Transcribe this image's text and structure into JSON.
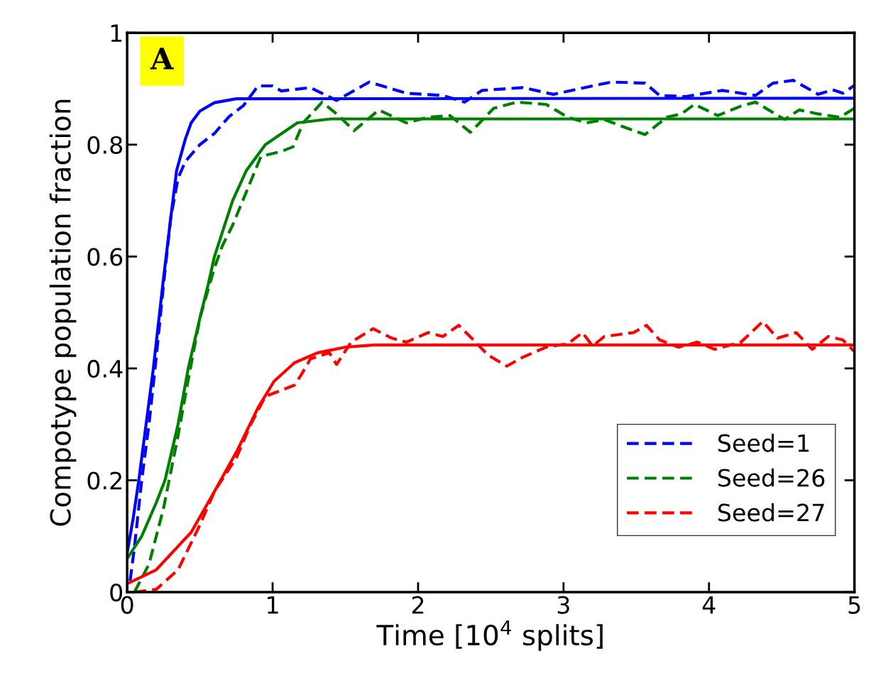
{
  "chart_data": {
    "type": "line",
    "xlabel": "Time [10$^{4}$ splits]",
    "ylabel": "Compotype population fraction",
    "annotations": [
      "A"
    ],
    "xlim": [
      0,
      5
    ],
    "ylim": [
      0,
      1
    ],
    "xticks": [
      0,
      1,
      2,
      3,
      4,
      5
    ],
    "yticks": [
      0,
      0.2,
      0.4,
      0.6,
      0.8,
      1
    ],
    "grid": false,
    "legend": "bottom right",
    "series": [
      {
        "name": "Seed=1",
        "color": "#0000ff",
        "line_style": "dashed",
        "x": [
          0.02,
          0.05,
          0.1,
          0.15,
          0.2,
          0.25,
          0.3,
          0.35,
          0.4,
          0.5,
          0.6,
          0.7,
          0.8,
          0.9,
          1.0,
          1.06,
          1.26,
          1.44,
          1.665,
          1.92,
          2.17,
          2.32,
          2.44,
          2.72,
          2.93,
          3.2,
          3.33,
          3.56,
          3.66,
          3.84,
          4.09,
          4.32,
          4.44,
          4.58,
          4.75,
          4.85,
          4.92,
          5.0
        ],
        "values": [
          0.02,
          0.08,
          0.2,
          0.3,
          0.42,
          0.55,
          0.67,
          0.74,
          0.77,
          0.8,
          0.82,
          0.85,
          0.87,
          0.905,
          0.905,
          0.896,
          0.902,
          0.879,
          0.912,
          0.892,
          0.888,
          0.876,
          0.897,
          0.902,
          0.89,
          0.905,
          0.912,
          0.91,
          0.888,
          0.886,
          0.897,
          0.888,
          0.91,
          0.915,
          0.89,
          0.898,
          0.892,
          0.906
        ]
      },
      {
        "name": "Seed=26",
        "color": "#008000",
        "line_style": "dashed",
        "x": [
          0.05,
          0.15,
          0.25,
          0.35,
          0.42,
          0.5,
          0.6,
          0.656,
          0.725,
          0.92,
          1.06,
          1.14,
          1.21,
          1.34,
          1.44,
          1.56,
          1.73,
          1.92,
          2.07,
          2.22,
          2.36,
          2.52,
          2.68,
          2.88,
          3.03,
          3.16,
          3.28,
          3.41,
          3.56,
          3.71,
          3.81,
          3.9,
          4.06,
          4.22,
          4.32,
          4.52,
          4.62,
          4.75,
          4.9,
          5.0
        ],
        "values": [
          0.0,
          0.05,
          0.15,
          0.28,
          0.38,
          0.49,
          0.58,
          0.62,
          0.656,
          0.779,
          0.788,
          0.796,
          0.839,
          0.876,
          0.855,
          0.825,
          0.862,
          0.839,
          0.849,
          0.852,
          0.822,
          0.865,
          0.876,
          0.872,
          0.849,
          0.839,
          0.845,
          0.832,
          0.818,
          0.849,
          0.855,
          0.872,
          0.852,
          0.869,
          0.876,
          0.845,
          0.862,
          0.855,
          0.849,
          0.865
        ]
      },
      {
        "name": "Seed=27",
        "color": "#ff0000",
        "line_style": "dashed",
        "x": [
          0.05,
          0.2,
          0.35,
          0.5,
          0.6,
          0.75,
          0.85,
          0.95,
          1.05,
          1.15,
          1.2,
          1.26,
          1.39,
          1.44,
          1.54,
          1.69,
          1.82,
          1.92,
          2.07,
          2.17,
          2.28,
          2.38,
          2.48,
          2.61,
          2.72,
          2.88,
          3.03,
          3.13,
          3.2,
          3.28,
          3.48,
          3.57,
          3.66,
          3.79,
          3.92,
          4.04,
          4.22,
          4.37,
          4.47,
          4.6,
          4.71,
          4.82,
          4.92,
          5.0
        ],
        "values": [
          0.0,
          0.005,
          0.04,
          0.12,
          0.18,
          0.24,
          0.3,
          0.35,
          0.36,
          0.37,
          0.39,
          0.417,
          0.428,
          0.407,
          0.447,
          0.471,
          0.454,
          0.447,
          0.464,
          0.457,
          0.477,
          0.451,
          0.424,
          0.404,
          0.42,
          0.438,
          0.444,
          0.464,
          0.44,
          0.457,
          0.464,
          0.477,
          0.451,
          0.438,
          0.447,
          0.434,
          0.447,
          0.484,
          0.454,
          0.464,
          0.434,
          0.457,
          0.451,
          0.43
        ]
      },
      {
        "color": "#0000ff",
        "line_style": "solid",
        "x": [
          0,
          0.04,
          0.08,
          0.13,
          0.18,
          0.245,
          0.3,
          0.34,
          0.4,
          0.44,
          0.5,
          0.6,
          0.75,
          5
        ],
        "values": [
          0.07,
          0.13,
          0.2,
          0.3,
          0.4,
          0.55,
          0.67,
          0.754,
          0.81,
          0.839,
          0.86,
          0.875,
          0.882,
          0.883
        ]
      },
      {
        "color": "#008000",
        "line_style": "solid",
        "x": [
          0,
          0.1,
          0.2,
          0.26,
          0.35,
          0.42,
          0.5,
          0.557,
          0.6,
          0.725,
          0.82,
          0.95,
          1.17,
          1.4,
          5
        ],
        "values": [
          0.06,
          0.1,
          0.16,
          0.2,
          0.3,
          0.4,
          0.49,
          0.55,
          0.6,
          0.7,
          0.754,
          0.8,
          0.839,
          0.846,
          0.846
        ]
      },
      {
        "color": "#ff0000",
        "line_style": "solid",
        "x": [
          0,
          0.2,
          0.44,
          0.6,
          0.76,
          0.9,
          1.01,
          1.15,
          1.31,
          1.5,
          1.7,
          5
        ],
        "values": [
          0.015,
          0.04,
          0.107,
          0.18,
          0.255,
          0.33,
          0.377,
          0.41,
          0.428,
          0.438,
          0.442,
          0.442
        ]
      }
    ]
  }
}
